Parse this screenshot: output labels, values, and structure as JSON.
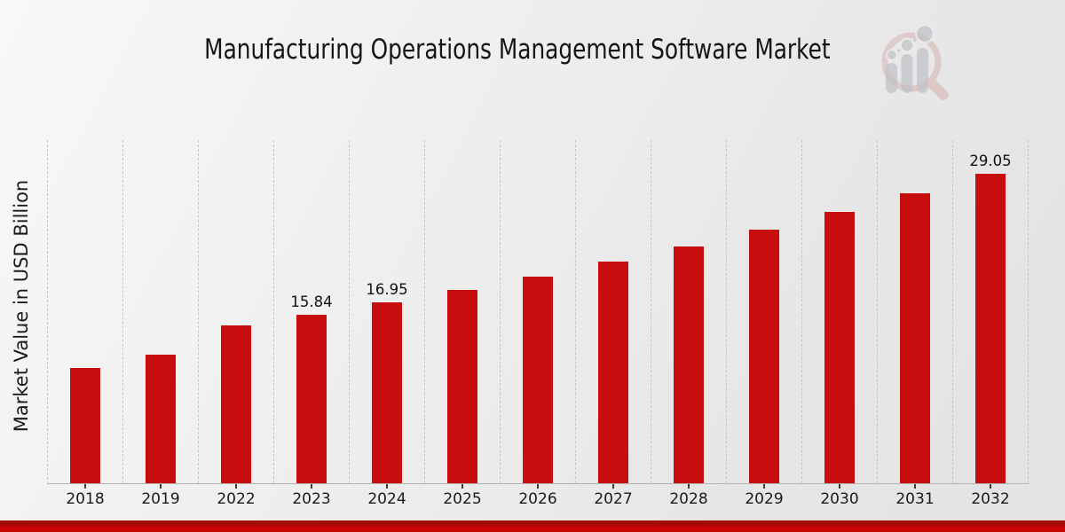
{
  "page": {
    "title": "Manufacturing Operations Management Software Market",
    "branding": {
      "logo": "magnifier-growth-chart-icon"
    },
    "colors": {
      "bar": "#c70d0d",
      "banner_top": "#a30b0b",
      "banner_bottom": "#cb0404",
      "gridline": "#c7c7c7",
      "axis_line": "#b2b2b2",
      "logo_ring": "#d2a2a2",
      "logo_glyph": "#c2c3c7"
    }
  },
  "chart_data": {
    "type": "bar",
    "title": "Manufacturing Operations Management Software Market",
    "xlabel": "",
    "ylabel": "Market Value in USD Billion",
    "categories": [
      "2018",
      "2019",
      "2022",
      "2023",
      "2024",
      "2025",
      "2026",
      "2027",
      "2028",
      "2029",
      "2030",
      "2031",
      "2032"
    ],
    "values": [
      10.85,
      12.07,
      14.8,
      15.84,
      16.95,
      18.14,
      19.41,
      20.77,
      22.22,
      23.78,
      25.44,
      27.22,
      29.05
    ],
    "value_labels": [
      "",
      "",
      "",
      "15.84",
      "16.95",
      "",
      "",
      "",
      "",
      "",
      "",
      "",
      "29.05"
    ],
    "ylim": [
      0,
      32.2
    ],
    "grid": "vertical-dashed-category-separators",
    "legend": "none",
    "bar_color": "#c70d0d"
  }
}
